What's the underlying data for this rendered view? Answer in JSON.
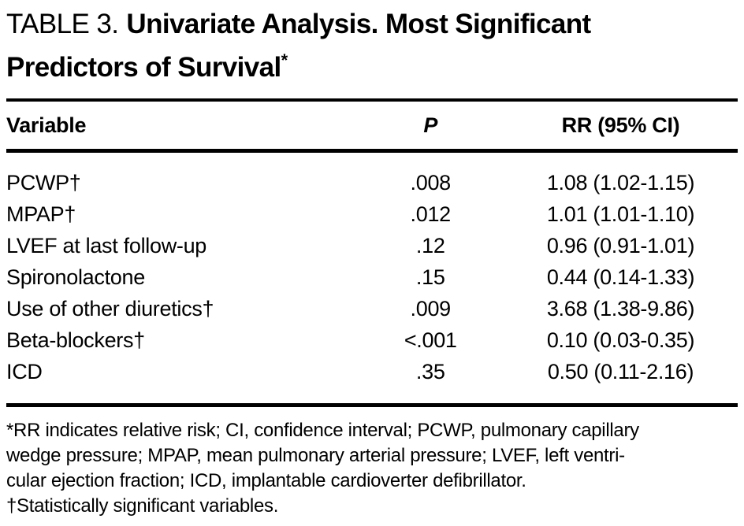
{
  "title": {
    "label": "TABLE 3.",
    "line1": "Univariate Analysis. Most Significant",
    "line2": "Predictors of Survival",
    "footnote_marker": "*"
  },
  "table": {
    "columns": {
      "variable": "Variable",
      "p": "P",
      "rr": "RR (95% CI)"
    },
    "rows": [
      {
        "variable": "PCWP†",
        "p": ".008",
        "rr": "1.08 (1.02-1.15)"
      },
      {
        "variable": "MPAP†",
        "p": ".012",
        "rr": "1.01 (1.01-1.10)"
      },
      {
        "variable": "LVEF at last follow-up",
        "p": ".12",
        "rr": "0.96 (0.91-1.01)"
      },
      {
        "variable": "Spironolactone",
        "p": ".15",
        "rr": "0.44 (0.14-1.33)"
      },
      {
        "variable": "Use of other diuretics†",
        "p": ".009",
        "rr": "3.68 (1.38-9.86)"
      },
      {
        "variable": "Beta-blockers†",
        "p": "<.001",
        "rr": "0.10 (0.03-0.35)"
      },
      {
        "variable": "ICD",
        "p": ".35",
        "rr": "0.50 (0.11-2.16)"
      }
    ]
  },
  "footnotes": {
    "lines": [
      "*RR indicates relative risk; CI, confidence interval; PCWP, pulmonary capillary",
      "wedge pressure; MPAP, mean pulmonary arterial pressure; LVEF, left ventri-",
      "cular ejection fraction; ICD, implantable cardioverter defibrillator.",
      "†Statistically significant variables."
    ]
  },
  "colors": {
    "text": "#000000",
    "background": "#ffffff",
    "rule": "#000000"
  }
}
